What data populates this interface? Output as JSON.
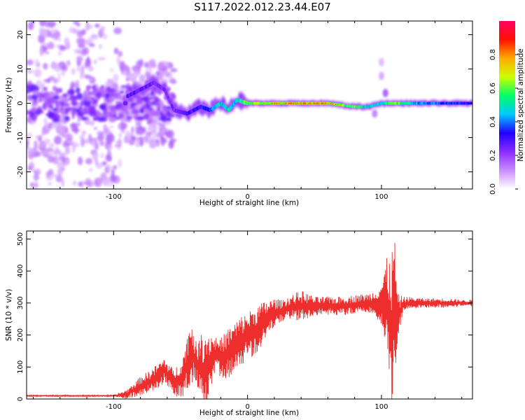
{
  "figure_title": "S117.2022.012.23.44.E07",
  "colors": {
    "snr_line": "#ee2d2d",
    "axis": "#000000",
    "colormap": [
      "#ffffff",
      "#c98cff",
      "#8a2cff",
      "#2200ff",
      "#00c8ff",
      "#00ff66",
      "#ccff00",
      "#ffaa00",
      "#ff1100",
      "#ff0066"
    ]
  },
  "chart_data": [
    {
      "type": "heatmap",
      "title": "",
      "xlabel": "Height of straight line (km)",
      "ylabel": "Frequency (Hz)",
      "xlim": [
        -165,
        168
      ],
      "ylim": [
        -25,
        24
      ],
      "xticks": [
        -100,
        0,
        100
      ],
      "xtick_labels": [
        "-100",
        "0",
        "100"
      ],
      "yticks": [
        -20,
        -10,
        0,
        10,
        20
      ],
      "ytick_labels": [
        "-20",
        "-10",
        "0",
        "10",
        "20"
      ],
      "colorbar": {
        "label": "Normalized spectral amplitude",
        "range": [
          0,
          1
        ],
        "ticks": [
          0.0,
          0.2,
          0.4,
          0.6,
          0.8
        ],
        "tick_labels": [
          "0.0",
          "0.2",
          "0.4",
          "0.6",
          "0.8"
        ]
      },
      "ridge": {
        "description_points": [
          {
            "x": -90,
            "y": 2,
            "amp": 0.35
          },
          {
            "x": -80,
            "y": 4,
            "amp": 0.35
          },
          {
            "x": -70,
            "y": 6,
            "amp": 0.3
          },
          {
            "x": -62,
            "y": 4,
            "amp": 0.3
          },
          {
            "x": -55,
            "y": -2,
            "amp": 0.3
          },
          {
            "x": -45,
            "y": -3,
            "amp": 0.35
          },
          {
            "x": -35,
            "y": -1,
            "amp": 0.4
          },
          {
            "x": -28,
            "y": -2,
            "amp": 0.45
          },
          {
            "x": -20,
            "y": 0,
            "amp": 0.6
          },
          {
            "x": -14,
            "y": -2,
            "amp": 0.6
          },
          {
            "x": -8,
            "y": 1,
            "amp": 0.6
          },
          {
            "x": 0,
            "y": 0,
            "amp": 0.75
          },
          {
            "x": 20,
            "y": 0,
            "amp": 0.8
          },
          {
            "x": 40,
            "y": 0,
            "amp": 0.9
          },
          {
            "x": 60,
            "y": 0,
            "amp": 0.85
          },
          {
            "x": 80,
            "y": -1,
            "amp": 0.7
          },
          {
            "x": 90,
            "y": -1,
            "amp": 0.6
          },
          {
            "x": 100,
            "y": 0,
            "amp": 0.6
          },
          {
            "x": 110,
            "y": 0,
            "amp": 0.75
          },
          {
            "x": 130,
            "y": 0,
            "amp": 0.5
          },
          {
            "x": 150,
            "y": 0,
            "amp": 0.45
          },
          {
            "x": 168,
            "y": 0,
            "amp": 0.4
          }
        ]
      }
    },
    {
      "type": "line",
      "title": "",
      "xlabel": "Height of straight line (km)",
      "ylabel": "SNR (10 * v/v)",
      "xlim": [
        -165,
        168
      ],
      "ylim": [
        0,
        525
      ],
      "xticks": [
        -100,
        0,
        100
      ],
      "xtick_labels": [
        "-100",
        "0",
        "100"
      ],
      "yticks": [
        0,
        100,
        200,
        300,
        400,
        500
      ],
      "ytick_labels": [
        "0",
        "100",
        "200",
        "300",
        "400",
        "500"
      ],
      "series": [
        {
          "x": [
            -165,
            -150,
            -130,
            -110,
            -100,
            -90,
            -80,
            -70,
            -62,
            -55,
            -48,
            -42,
            -38,
            -32,
            -25,
            -20,
            -15,
            -10,
            -5,
            0,
            5,
            10,
            15,
            20,
            25,
            30,
            40,
            50,
            60,
            70,
            80,
            90,
            95,
            100,
            104,
            108,
            110,
            112,
            116,
            120,
            130,
            140,
            150,
            160,
            168
          ],
          "y": [
            10,
            10,
            10,
            10,
            10,
            15,
            40,
            60,
            90,
            50,
            70,
            150,
            110,
            80,
            140,
            130,
            140,
            160,
            180,
            200,
            210,
            230,
            250,
            270,
            275,
            285,
            290,
            290,
            290,
            290,
            295,
            300,
            300,
            300,
            290,
            200,
            300,
            250,
            295,
            300,
            300,
            300,
            300,
            300,
            300
          ],
          "envelope": [
            10,
            12,
            12,
            12,
            12,
            30,
            70,
            100,
            130,
            90,
            140,
            260,
            170,
            230,
            200,
            190,
            220,
            240,
            260,
            270,
            290,
            300,
            310,
            315,
            310,
            320,
            340,
            320,
            320,
            320,
            325,
            330,
            340,
            370,
            440,
            470,
            525,
            330,
            320,
            320,
            315,
            315,
            315,
            310,
            310
          ]
        }
      ]
    }
  ]
}
